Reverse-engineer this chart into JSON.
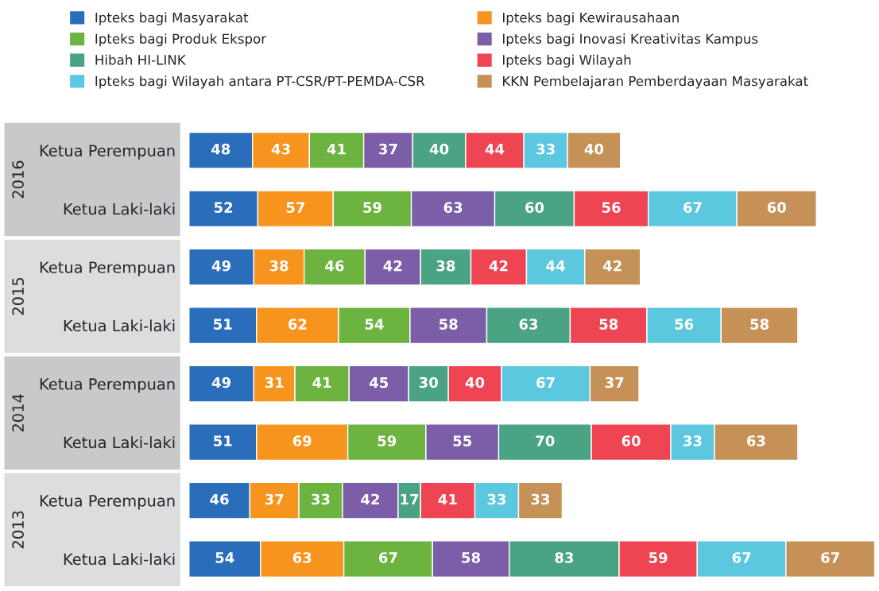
{
  "chart_data": {
    "type": "bar",
    "orientation": "horizontal",
    "stacked": true,
    "data_labels": true,
    "legend": "top",
    "grid": false,
    "tick_labels": "y",
    "categories": [
      "Ketua Perempuan",
      "Ketua Laki-laki",
      "Ketua Perempuan",
      "Ketua Laki-laki",
      "Ketua Perempuan",
      "Ketua Laki-laki",
      "Ketua Perempuan",
      "Ketua Laki-laki"
    ],
    "annotations": [
      "2016",
      "2015",
      "2014",
      "2013"
    ],
    "series": [
      {
        "name": "Ipteks bagi Masyarakat",
        "color": "#2a6ebb",
        "values": [
          48,
          52,
          49,
          51,
          49,
          51,
          46,
          54
        ]
      },
      {
        "name": "Ipteks bagi Kewirausahaan",
        "color": "#f7941d",
        "values": [
          43,
          57,
          38,
          62,
          31,
          69,
          37,
          63
        ]
      },
      {
        "name": "Ipteks bagi Produk Ekspor",
        "color": "#6cb33f",
        "values": [
          41,
          59,
          46,
          54,
          41,
          59,
          33,
          67
        ]
      },
      {
        "name": "Ipteks bagi Inovasi Kreativitas Kampus",
        "color": "#7b5ea7",
        "values": [
          37,
          63,
          42,
          58,
          45,
          55,
          42,
          58
        ]
      },
      {
        "name": "Hibah HI-LINK",
        "color": "#4aa383",
        "values": [
          40,
          60,
          38,
          63,
          30,
          70,
          17,
          83
        ]
      },
      {
        "name": "Ipteks bagi Wilayah",
        "color": "#ef4452",
        "values": [
          44,
          56,
          42,
          58,
          40,
          60,
          41,
          59
        ]
      },
      {
        "name": "Ipteks bagi Wilayah antara PT-CSR/PT-PEMDA-CSR",
        "color": "#5bc8e0",
        "values": [
          33,
          67,
          44,
          56,
          67,
          33,
          33,
          67
        ]
      },
      {
        "name": "KKN Pembelajaran Pemberdayaan Masyarakat",
        "color": "#c69157",
        "values": [
          40,
          60,
          42,
          58,
          37,
          63,
          33,
          67
        ]
      }
    ]
  }
}
